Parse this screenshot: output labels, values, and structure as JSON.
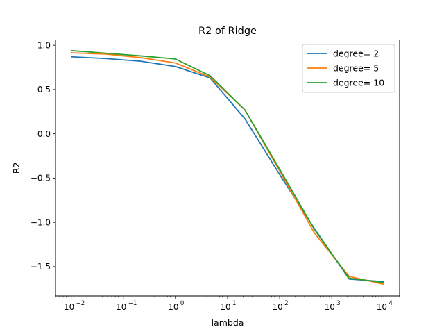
{
  "chart_data": {
    "type": "line",
    "title": "R2 of Ridge",
    "xlabel": "lambda",
    "ylabel": "R2",
    "xscale": "log",
    "xlim": [
      0.005,
      20000
    ],
    "ylim": [
      -1.83,
      1.06
    ],
    "grid": false,
    "legend_position": "top-right",
    "x": [
      0.01,
      0.046,
      0.215,
      1.0,
      4.64,
      21.5,
      100,
      464,
      2154,
      10000
    ],
    "xticks": [
      {
        "value": 0.01,
        "base": "10",
        "exp": "−2"
      },
      {
        "value": 0.1,
        "base": "10",
        "exp": "−1"
      },
      {
        "value": 1,
        "base": "10",
        "exp": "0"
      },
      {
        "value": 10,
        "base": "10",
        "exp": "1"
      },
      {
        "value": 100,
        "base": "10",
        "exp": "2"
      },
      {
        "value": 1000,
        "base": "10",
        "exp": "3"
      },
      {
        "value": 10000,
        "base": "10",
        "exp": "4"
      }
    ],
    "yticks": [
      {
        "value": 1.0,
        "label": "1.0"
      },
      {
        "value": 0.5,
        "label": "0.5"
      },
      {
        "value": 0.0,
        "label": "0.0"
      },
      {
        "value": -0.5,
        "label": "−0.5"
      },
      {
        "value": -1.0,
        "label": "−1.0"
      },
      {
        "value": -1.5,
        "label": "−1.5"
      }
    ],
    "series": [
      {
        "name": "degree= 2",
        "color": "#1f77b4",
        "values": [
          0.87,
          0.85,
          0.82,
          0.76,
          0.63,
          0.17,
          -0.46,
          -1.07,
          -1.64,
          -1.67
        ]
      },
      {
        "name": "degree= 5",
        "color": "#ff7f0e",
        "values": [
          0.915,
          0.9,
          0.86,
          0.8,
          0.64,
          0.27,
          -0.42,
          -1.12,
          -1.61,
          -1.7
        ]
      },
      {
        "name": "degree= 10",
        "color": "#2ca02c",
        "values": [
          0.94,
          0.91,
          0.88,
          0.845,
          0.655,
          0.27,
          -0.4,
          -1.08,
          -1.63,
          -1.68
        ]
      }
    ]
  }
}
